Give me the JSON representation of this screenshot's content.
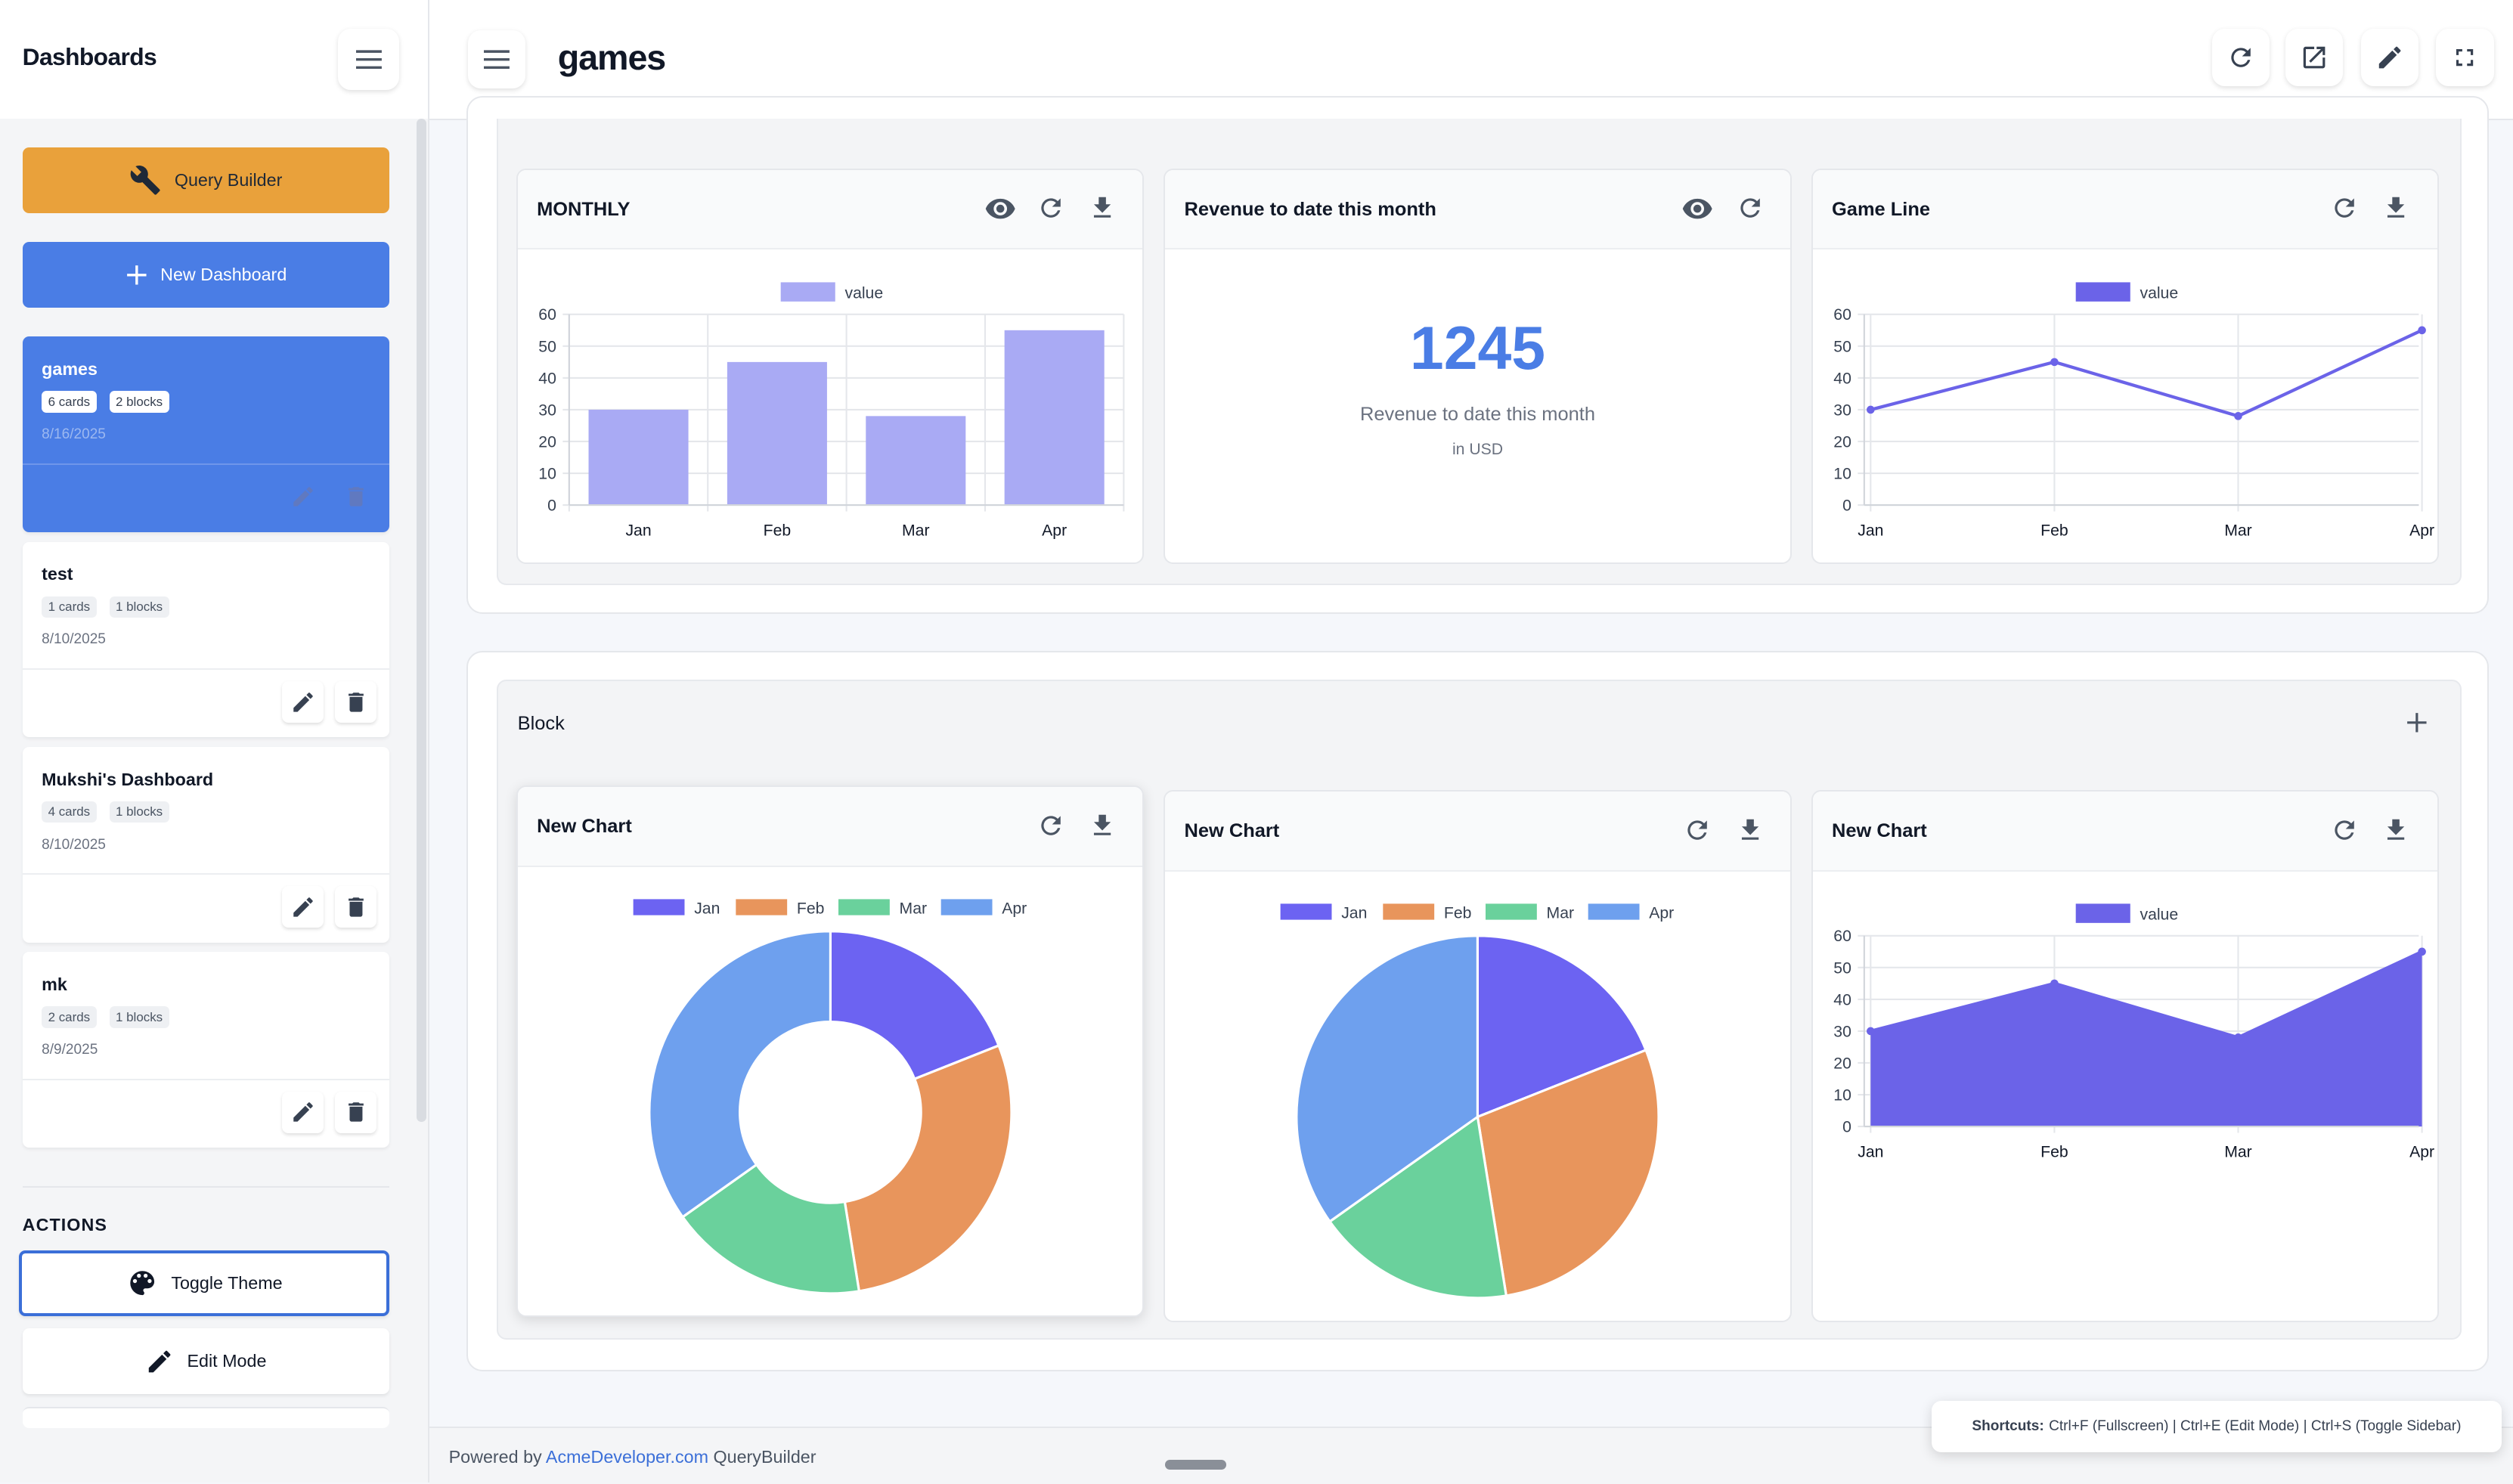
{
  "sidebar": {
    "title": "Dashboards",
    "query_builder_label": "Query Builder",
    "new_dashboard_label": "New Dashboard",
    "dashboards": [
      {
        "name": "games",
        "cards": "6 cards",
        "blocks": "2 blocks",
        "date": "8/16/2025",
        "active": true
      },
      {
        "name": "test",
        "cards": "1 cards",
        "blocks": "1 blocks",
        "date": "8/10/2025",
        "active": false
      },
      {
        "name": "Mukshi's Dashboard",
        "cards": "4 cards",
        "blocks": "1 blocks",
        "date": "8/10/2025",
        "active": false
      },
      {
        "name": "mk",
        "cards": "2 cards",
        "blocks": "1 blocks",
        "date": "8/9/2025",
        "active": false
      }
    ],
    "actions_label": "ACTIONS",
    "toggle_theme_label": "Toggle Theme",
    "edit_mode_label": "Edit Mode"
  },
  "header": {
    "title": "games",
    "icons": [
      "refresh-icon",
      "open-external-icon",
      "edit-icon",
      "fullscreen-icon"
    ]
  },
  "block1": {
    "monthly": {
      "title": "MONTHLY",
      "legend": "value"
    },
    "kpi": {
      "title": "Revenue to date this month",
      "value": "1245",
      "label": "Revenue to date this month",
      "sublabel": "in USD"
    },
    "game_line": {
      "title": "Game Line",
      "legend": "value"
    }
  },
  "block2": {
    "label": "Block",
    "donut": {
      "title": "New Chart"
    },
    "pie": {
      "title": "New Chart"
    },
    "area": {
      "title": "New Chart",
      "legend": "value"
    }
  },
  "colors": {
    "accent": "#4a7de5",
    "query_builder": "#e9a13b",
    "bar": "#a9aaf4",
    "line": "#6b63e8",
    "jan": "#6c63f2",
    "feb": "#e8955c",
    "mar": "#6ad19c",
    "apr": "#6ea0ee"
  },
  "footer": {
    "prefix": "Powered by ",
    "link": "AcmeDeveloper.com",
    "suffix": " QueryBuilder"
  },
  "shortcuts": {
    "label": "Shortcuts:",
    "text": "Ctrl+F (Fullscreen) | Ctrl+E (Edit Mode) | Ctrl+S (Toggle Sidebar)"
  },
  "chart_data": [
    {
      "type": "bar",
      "title": "MONTHLY",
      "categories": [
        "Jan",
        "Feb",
        "Mar",
        "Apr"
      ],
      "values": [
        30,
        45,
        28,
        55
      ],
      "legend": [
        "value"
      ],
      "ylim": [
        0,
        60
      ],
      "yticks": [
        0,
        10,
        20,
        30,
        40,
        50,
        60
      ],
      "grid": true,
      "legend_position": "top"
    },
    {
      "type": "line",
      "title": "Game Line",
      "categories": [
        "Jan",
        "Feb",
        "Mar",
        "Apr"
      ],
      "values": [
        30,
        45,
        28,
        55
      ],
      "legend": [
        "value"
      ],
      "ylim": [
        0,
        60
      ],
      "yticks": [
        0,
        10,
        20,
        30,
        40,
        50,
        60
      ],
      "grid": true,
      "legend_position": "top"
    },
    {
      "type": "pie",
      "variant": "doughnut",
      "title": "New Chart",
      "categories": [
        "Jan",
        "Feb",
        "Mar",
        "Apr"
      ],
      "values": [
        30,
        45,
        28,
        55
      ],
      "legend_position": "top"
    },
    {
      "type": "pie",
      "title": "New Chart",
      "categories": [
        "Jan",
        "Feb",
        "Mar",
        "Apr"
      ],
      "values": [
        30,
        45,
        28,
        55
      ],
      "legend_position": "top"
    },
    {
      "type": "area",
      "title": "New Chart",
      "categories": [
        "Jan",
        "Feb",
        "Mar",
        "Apr"
      ],
      "values": [
        30,
        45,
        28,
        55
      ],
      "legend": [
        "value"
      ],
      "ylim": [
        0,
        60
      ],
      "yticks": [
        0,
        10,
        20,
        30,
        40,
        50,
        60
      ],
      "grid": true,
      "legend_position": "top"
    }
  ]
}
